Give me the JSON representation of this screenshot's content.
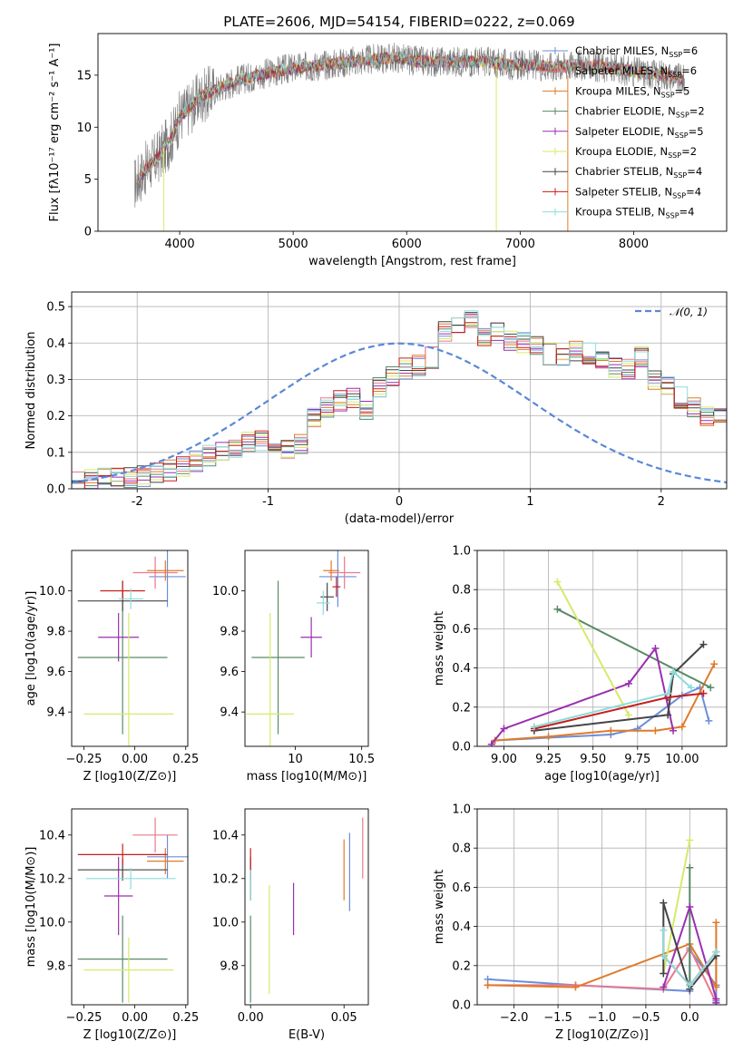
{
  "title": "PLATE=2606, MJD=54154, FIBERID=0222, z=0.069",
  "colors": {
    "Chabrier MILES": "#6b8fd8",
    "Salpeter MILES": "#e87a8c",
    "Kroupa MILES": "#e07b2a",
    "Chabrier ELODIE": "#5a8a68",
    "Salpeter ELODIE": "#9a2fb0",
    "Kroupa ELODIE": "#d6ea6a",
    "Chabrier STELIB": "#444444",
    "Salpeter STELIB": "#c81e1e",
    "Kroupa STELIB": "#8edcdc",
    "normal_curve": "#5a88d8",
    "spectrum_data": "#7a7a7a"
  },
  "chart_data": [
    {
      "id": "spectrum",
      "type": "line",
      "title": "PLATE=2606, MJD=54154, FIBERID=0222, z=0.069",
      "xlabel": "wavelength [Angstrom, rest frame]",
      "ylabel": "Flux [fλ10⁻¹⁷ erg cm⁻² s⁻¹ A⁻¹]",
      "xlim": [
        3280,
        8820
      ],
      "ylim": [
        0,
        19
      ],
      "xticks": [
        4000,
        5000,
        6000,
        7000,
        8000
      ],
      "yticks": [
        0,
        5,
        10,
        15
      ],
      "legend_position": "top-right",
      "legend": [
        "Chabrier MILES, NSSP=6",
        "Salpeter MILES, NSSP=6",
        "Kroupa MILES, NSSP=5",
        "Chabrier ELODIE, NSSP=2",
        "Salpeter ELODIE, NSSP=5",
        "Kroupa ELODIE, NSSP=2",
        "Chabrier STELIB, NSSP=4",
        "Salpeter STELIB, NSSP=4",
        "Kroupa STELIB, NSSP=4"
      ],
      "model_envelope": {
        "x": [
          3600,
          3700,
          3800,
          3900,
          3950,
          4000,
          4100,
          4200,
          4300,
          4400,
          4500,
          4700,
          4900,
          5100,
          5300,
          5500,
          5700,
          5900,
          6100,
          6300,
          6500,
          6700,
          6900,
          7100,
          7300,
          7500,
          7700,
          7900,
          8100,
          8300,
          8450
        ],
        "y": [
          4.5,
          6.0,
          7.0,
          8.5,
          9.5,
          11.0,
          12.0,
          13.0,
          13.5,
          14.0,
          14.5,
          15.0,
          15.5,
          15.8,
          16.0,
          16.3,
          16.5,
          16.7,
          16.3,
          16.3,
          16.3,
          16.3,
          16.0,
          16.0,
          15.8,
          16.0,
          15.8,
          15.5,
          15.2,
          15.0,
          14.5
        ]
      },
      "data_noise_amplitude": 1.5
    },
    {
      "id": "residuals",
      "type": "histogram",
      "xlabel": "(data-model)/error",
      "ylabel": "Normed distribution",
      "xlim": [
        -2.5,
        2.5
      ],
      "ylim": [
        0,
        0.54
      ],
      "xticks": [
        -2,
        -1,
        0,
        1,
        2
      ],
      "yticks": [
        0.0,
        0.1,
        0.2,
        0.3,
        0.4,
        0.5
      ],
      "grid": true,
      "legend_position": "top-right",
      "curve_label": "𝒩(0, 1)",
      "bin_width": 0.1,
      "bin_start": -2.5,
      "base_density": [
        0.018,
        0.025,
        0.03,
        0.027,
        0.03,
        0.035,
        0.045,
        0.05,
        0.06,
        0.075,
        0.09,
        0.1,
        0.11,
        0.13,
        0.13,
        0.12,
        0.11,
        0.12,
        0.2,
        0.22,
        0.24,
        0.25,
        0.22,
        0.28,
        0.31,
        0.33,
        0.34,
        0.36,
        0.43,
        0.45,
        0.46,
        0.42,
        0.43,
        0.41,
        0.4,
        0.39,
        0.37,
        0.36,
        0.38,
        0.37,
        0.35,
        0.33,
        0.33,
        0.36,
        0.3,
        0.28,
        0.25,
        0.22,
        0.2,
        0.2,
        0.17,
        0.15,
        0.14,
        0.13,
        0.12,
        0.1,
        0.08,
        0.1,
        0.07,
        0.065,
        0.05,
        0.045,
        0.04,
        0.04,
        0.03,
        0.025,
        0.02,
        0.02,
        0.015,
        0.015
      ]
    },
    {
      "id": "age_vs_Z",
      "type": "errorbar",
      "xlabel": "Z [log10(Z/Z⊙)]",
      "ylabel": "age  [log10(age/yr)]",
      "xlim": [
        -0.31,
        0.26
      ],
      "ylim": [
        9.23,
        10.2
      ],
      "xticks": [
        -0.25,
        0.0,
        0.25
      ],
      "xticklabels": [
        "−0.25",
        "0.00",
        "0.25"
      ],
      "yticks": [
        9.4,
        9.6,
        9.8,
        10.0
      ],
      "points": [
        {
          "model": "Chabrier MILES",
          "x": 0.16,
          "y": 10.07,
          "xerr": 0.09,
          "yerr": 0.15
        },
        {
          "model": "Salpeter MILES",
          "x": 0.1,
          "y": 10.09,
          "xerr": 0.11,
          "yerr": 0.08
        },
        {
          "model": "Kroupa MILES",
          "x": 0.15,
          "y": 10.1,
          "xerr": 0.09,
          "yerr": 0.05
        },
        {
          "model": "Chabrier ELODIE",
          "x": -0.06,
          "y": 9.67,
          "xerr": 0.22,
          "yerr": 0.38
        },
        {
          "model": "Salpeter ELODIE",
          "x": -0.08,
          "y": 9.77,
          "xerr": 0.1,
          "yerr": 0.12
        },
        {
          "model": "Kroupa ELODIE",
          "x": -0.03,
          "y": 9.39,
          "xerr": 0.22,
          "yerr": 0.5
        },
        {
          "model": "Chabrier STELIB",
          "x": -0.06,
          "y": 9.95,
          "xerr": 0.22,
          "yerr": 0.05
        },
        {
          "model": "Salpeter STELIB",
          "x": -0.06,
          "y": 10.0,
          "xerr": 0.11,
          "yerr": 0.05
        },
        {
          "model": "Kroupa STELIB",
          "x": -0.02,
          "y": 9.96,
          "xerr": 0.06,
          "yerr": 0.05
        }
      ]
    },
    {
      "id": "age_vs_mass",
      "type": "errorbar",
      "xlabel": "mass [log10(M/M⊙)]",
      "xlim": [
        9.62,
        10.55
      ],
      "ylim": [
        9.23,
        10.2
      ],
      "xticks": [
        10.0,
        10.5
      ],
      "yticks": [
        9.4,
        9.6,
        9.8,
        10.0
      ],
      "points": [
        {
          "model": "Chabrier MILES",
          "x": 10.32,
          "y": 10.07,
          "xerr": 0.14,
          "yerr": 0.15
        },
        {
          "model": "Salpeter MILES",
          "x": 10.37,
          "y": 10.09,
          "xerr": 0.12,
          "yerr": 0.08
        },
        {
          "model": "Kroupa MILES",
          "x": 10.27,
          "y": 10.1,
          "xerr": 0.06,
          "yerr": 0.05
        },
        {
          "model": "Chabrier ELODIE",
          "x": 9.87,
          "y": 9.67,
          "xerr": 0.2,
          "yerr": 0.38
        },
        {
          "model": "Salpeter ELODIE",
          "x": 10.12,
          "y": 9.77,
          "xerr": 0.08,
          "yerr": 0.1
        },
        {
          "model": "Kroupa ELODIE",
          "x": 9.81,
          "y": 9.39,
          "xerr": 0.18,
          "yerr": 0.5
        },
        {
          "model": "Chabrier STELIB",
          "x": 10.24,
          "y": 9.97,
          "xerr": 0.05,
          "yerr": 0.07
        },
        {
          "model": "Salpeter STELIB",
          "x": 10.31,
          "y": 10.02,
          "xerr": 0.03,
          "yerr": 0.05
        },
        {
          "model": "Kroupa STELIB",
          "x": 10.21,
          "y": 9.94,
          "xerr": 0.05,
          "yerr": 0.06
        }
      ]
    },
    {
      "id": "weight_vs_age",
      "type": "line",
      "xlabel": "age  [log10(age/yr)]",
      "ylabel": "mass weight",
      "xlim": [
        8.85,
        10.25
      ],
      "ylim": [
        0,
        1
      ],
      "xticks": [
        9.0,
        9.25,
        9.5,
        9.75,
        10.0
      ],
      "xticklabels": [
        "9.00",
        "9.25",
        "9.50",
        "9.75",
        "10.00"
      ],
      "yticks": [
        0.0,
        0.2,
        0.4,
        0.6,
        0.8,
        1.0
      ],
      "grid": true,
      "series": [
        {
          "model": "Chabrier MILES",
          "x": [
            8.95,
            9.6,
            9.75,
            10.0,
            10.1,
            10.15
          ],
          "y": [
            0.03,
            0.06,
            0.09,
            0.26,
            0.3,
            0.13
          ]
        },
        {
          "model": "Kroupa MILES",
          "x": [
            8.95,
            9.25,
            9.6,
            9.85,
            10.0,
            10.18
          ],
          "y": [
            0.03,
            0.05,
            0.08,
            0.08,
            0.1,
            0.42
          ]
        },
        {
          "model": "Chabrier ELODIE",
          "x": [
            9.3,
            10.16
          ],
          "y": [
            0.7,
            0.3
          ]
        },
        {
          "model": "Salpeter ELODIE",
          "x": [
            8.93,
            9.0,
            9.7,
            9.85,
            9.95
          ],
          "y": [
            0.01,
            0.09,
            0.32,
            0.5,
            0.08
          ]
        },
        {
          "model": "Kroupa ELODIE",
          "x": [
            9.3,
            9.7
          ],
          "y": [
            0.84,
            0.16
          ]
        },
        {
          "model": "Chabrier STELIB",
          "x": [
            9.17,
            9.92,
            9.95,
            10.12
          ],
          "y": [
            0.08,
            0.16,
            0.37,
            0.52
          ]
        },
        {
          "model": "Salpeter STELIB",
          "x": [
            9.17,
            9.92,
            10.12
          ],
          "y": [
            0.09,
            0.25,
            0.27
          ]
        },
        {
          "model": "Kroupa STELIB",
          "x": [
            9.17,
            9.92,
            9.95,
            10.05
          ],
          "y": [
            0.1,
            0.27,
            0.38,
            0.3
          ]
        }
      ]
    },
    {
      "id": "mass_vs_Z",
      "type": "errorbar",
      "xlabel": "Z [log10(Z/Z⊙)]",
      "ylabel": "mass [log10(M/M⊙)]",
      "xlim": [
        -0.31,
        0.26
      ],
      "ylim": [
        9.62,
        10.52
      ],
      "xticks": [
        -0.25,
        0.0,
        0.25
      ],
      "xticklabels": [
        "−0.25",
        "0.00",
        "0.25"
      ],
      "yticks": [
        9.8,
        10.0,
        10.2,
        10.4
      ],
      "points": [
        {
          "model": "Chabrier MILES",
          "x": 0.16,
          "y": 10.3,
          "xerr": 0.1,
          "yerr": 0.1
        },
        {
          "model": "Salpeter MILES",
          "x": 0.1,
          "y": 10.4,
          "xerr": 0.11,
          "yerr": 0.08
        },
        {
          "model": "Kroupa MILES",
          "x": 0.15,
          "y": 10.28,
          "xerr": 0.09,
          "yerr": 0.06
        },
        {
          "model": "Chabrier ELODIE",
          "x": -0.06,
          "y": 9.83,
          "xerr": 0.22,
          "yerr": 0.2
        },
        {
          "model": "Salpeter ELODIE",
          "x": -0.08,
          "y": 10.12,
          "xerr": 0.07,
          "yerr": 0.18
        },
        {
          "model": "Kroupa ELODIE",
          "x": -0.03,
          "y": 9.78,
          "xerr": 0.22,
          "yerr": 0.15
        },
        {
          "model": "Chabrier STELIB",
          "x": -0.06,
          "y": 10.24,
          "xerr": 0.22,
          "yerr": 0.05
        },
        {
          "model": "Salpeter STELIB",
          "x": -0.06,
          "y": 10.31,
          "xerr": 0.22,
          "yerr": 0.05
        },
        {
          "model": "Kroupa STELIB",
          "x": -0.02,
          "y": 10.2,
          "xerr": 0.22,
          "yerr": 0.05
        }
      ]
    },
    {
      "id": "mass_vs_ebv",
      "type": "errorbar",
      "xlabel": "E(B-V)",
      "xlim": [
        -0.003,
        0.063
      ],
      "ylim": [
        9.62,
        10.52
      ],
      "xticks": [
        0.0,
        0.05
      ],
      "xticklabels": [
        "0.00",
        "0.05"
      ],
      "yticks": [
        9.8,
        10.0,
        10.2,
        10.4
      ],
      "points": [
        {
          "model": "Chabrier MILES",
          "x": 0.053,
          "y": 10.23,
          "xerr": 0,
          "yerr": 0.18
        },
        {
          "model": "Salpeter MILES",
          "x": 0.06,
          "y": 10.34,
          "xerr": 0,
          "yerr": 0.14
        },
        {
          "model": "Kroupa MILES",
          "x": 0.05,
          "y": 10.24,
          "xerr": 0,
          "yerr": 0.14
        },
        {
          "model": "Chabrier ELODIE",
          "x": 0.0,
          "y": 9.83,
          "xerr": 0,
          "yerr": 0.2
        },
        {
          "model": "Salpeter ELODIE",
          "x": 0.023,
          "y": 10.06,
          "xerr": 0,
          "yerr": 0.12
        },
        {
          "model": "Kroupa ELODIE",
          "x": 0.01,
          "y": 9.92,
          "xerr": 0,
          "yerr": 0.25
        },
        {
          "model": "Chabrier STELIB",
          "x": 0.0,
          "y": 10.2,
          "xerr": 0,
          "yerr": 0.1
        },
        {
          "model": "Salpeter STELIB",
          "x": 0.0,
          "y": 10.27,
          "xerr": 0,
          "yerr": 0.07
        },
        {
          "model": "Kroupa STELIB",
          "x": 0.0,
          "y": 10.17,
          "xerr": 0,
          "yerr": 0.07
        }
      ]
    },
    {
      "id": "weight_vs_Z",
      "type": "line",
      "xlabel": "Z [log10(Z/Z⊙)]",
      "ylabel": "mass weight",
      "xlim": [
        -2.42,
        0.42
      ],
      "ylim": [
        0,
        1
      ],
      "xticks": [
        -2.0,
        -1.5,
        -1.0,
        -0.5,
        0.0
      ],
      "xticklabels": [
        "−2.0",
        "−1.5",
        "−1.0",
        "−0.5",
        "0.0"
      ],
      "yticks": [
        0.0,
        0.2,
        0.4,
        0.6,
        0.8,
        1.0
      ],
      "grid": true,
      "series": [
        {
          "model": "Chabrier MILES",
          "x": [
            -2.3,
            -1.3,
            0.0,
            0.0,
            0.3,
            0.3,
            0.3
          ],
          "y": [
            0.13,
            0.1,
            0.07,
            0.28,
            0.1,
            0.25,
            0.02
          ]
        },
        {
          "model": "Salpeter MILES",
          "x": [
            -2.3,
            -1.3,
            -0.3,
            0.0,
            0.3
          ],
          "y": [
            0.1,
            0.1,
            0.08,
            0.29,
            0.01
          ]
        },
        {
          "model": "Kroupa MILES",
          "x": [
            -2.3,
            -1.3,
            0.0,
            0.3,
            0.3
          ],
          "y": [
            0.1,
            0.09,
            0.31,
            0.09,
            0.42
          ]
        },
        {
          "model": "Chabrier ELODIE",
          "x": [
            0.0,
            0.0
          ],
          "y": [
            0.1,
            0.7
          ]
        },
        {
          "model": "Salpeter ELODIE",
          "x": [
            -0.3,
            0.0,
            0.3,
            0.3
          ],
          "y": [
            0.09,
            0.5,
            0.03,
            0.01
          ]
        },
        {
          "model": "Kroupa ELODIE",
          "x": [
            -0.3,
            0.0
          ],
          "y": [
            0.16,
            0.84
          ]
        },
        {
          "model": "Chabrier STELIB",
          "x": [
            -0.3,
            -0.3,
            0.0,
            0.3
          ],
          "y": [
            0.16,
            0.52,
            0.08,
            0.25
          ]
        },
        {
          "model": "Salpeter STELIB",
          "x": [
            -0.3,
            0.0,
            0.3
          ],
          "y": [
            0.25,
            0.1,
            0.27
          ]
        },
        {
          "model": "Kroupa STELIB",
          "x": [
            -0.3,
            -0.3,
            0.0,
            0.3
          ],
          "y": [
            0.38,
            0.25,
            0.1,
            0.27
          ]
        }
      ]
    }
  ]
}
